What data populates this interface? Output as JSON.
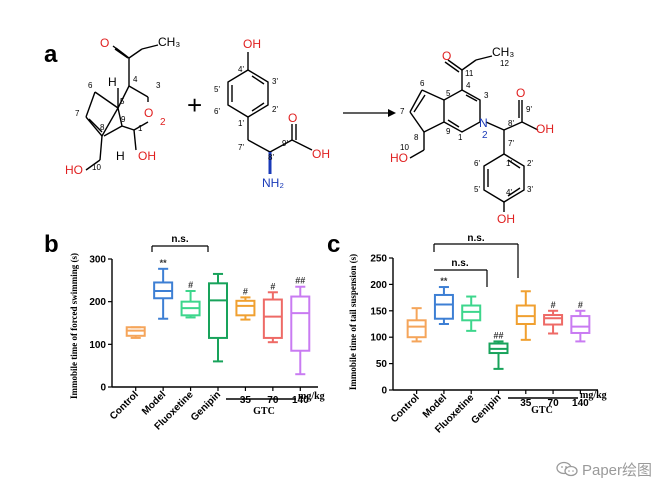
{
  "panel_a": {
    "label": "a",
    "plus": "+",
    "compound1": {
      "methyl": "CH₃",
      "atoms": {
        "O_ester": "O",
        "O_ring": "O",
        "ring_O_number": "2",
        "OH_10": "HO",
        "OH_1": "OH",
        "H5": "H",
        "H9": "H"
      },
      "numbers": {
        "n1": "1",
        "n3": "3",
        "n4": "4",
        "n5": "5",
        "n6": "6",
        "n7": "7",
        "n8": "8",
        "n9": "9",
        "n10": "10"
      }
    },
    "compound2": {
      "atoms": {
        "OH_top": "OH",
        "NH2": "NH₂",
        "O_acid": "O",
        "OH_acid": "OH"
      },
      "numbers": {
        "p4": "4'",
        "p3": "3'",
        "p5": "5'",
        "p6": "6'",
        "p1": "1'",
        "p2": "2'",
        "p7": "7'",
        "p8": "8'",
        "p9": "9'"
      }
    },
    "product": {
      "methyl": "CH₃",
      "atoms": {
        "O_ester": "O",
        "N": "N",
        "N_number": "2",
        "HO_10": "HO",
        "O_acid": "O",
        "OH_acid": "OH",
        "OH_bottom": "OH"
      },
      "numbers": {
        "n1": "1",
        "n3": "3",
        "n4": "4",
        "n5": "5",
        "n6": "6",
        "n7": "7",
        "n8": "8",
        "n9": "9",
        "n10": "10",
        "n11": "11",
        "n12": "12",
        "p8": "8'",
        "p9": "9'",
        "p7": "7'",
        "p1": "1'",
        "p2": "2'",
        "p3": "3'",
        "p4": "4'",
        "p5": "5'",
        "p6": "6'"
      }
    }
  },
  "chart_data": [
    {
      "type": "box",
      "panel_label": "b",
      "ylabel": "Immobile time of forced swimming (s)",
      "ylim": [
        0,
        300
      ],
      "yticks": [
        0,
        100,
        200,
        300
      ],
      "categories": [
        "Control",
        "Model",
        "Fluoxetine",
        "Genipin",
        "35",
        "70",
        "140"
      ],
      "group_label": "GTC",
      "unit_label": "mg/kg",
      "bracket_label": "n.s.",
      "colors": [
        "#F5A55A",
        "#3D7FD4",
        "#3DD68C",
        "#18A35B",
        "#F0A030",
        "#EE6A66",
        "#C97BF2"
      ],
      "boxes": [
        {
          "min": 115,
          "q1": 120,
          "median": 132,
          "q3": 140,
          "max": 140
        },
        {
          "min": 160,
          "q1": 208,
          "median": 225,
          "q3": 245,
          "max": 277
        },
        {
          "min": 163,
          "q1": 168,
          "median": 185,
          "q3": 200,
          "max": 225
        },
        {
          "min": 60,
          "q1": 115,
          "median": 203,
          "q3": 243,
          "max": 265
        },
        {
          "min": 158,
          "q1": 168,
          "median": 190,
          "q3": 202,
          "max": 210
        },
        {
          "min": 105,
          "q1": 115,
          "median": 165,
          "q3": 205,
          "max": 222
        },
        {
          "min": 30,
          "q1": 85,
          "median": 173,
          "q3": 212,
          "max": 235
        }
      ],
      "annotations": [
        "",
        "**",
        "#",
        "",
        "#",
        "#",
        "##"
      ]
    },
    {
      "type": "box",
      "panel_label": "c",
      "ylabel": "Immobile time of tail suspension (s)",
      "ylim": [
        0,
        250
      ],
      "yticks": [
        0,
        50,
        100,
        150,
        200,
        250
      ],
      "categories": [
        "Control",
        "Model",
        "Fluoxetine",
        "Genipin",
        "35",
        "70",
        "140"
      ],
      "group_label": "GTC",
      "unit_label": "mg/kg",
      "bracket_labels": [
        "n.s.",
        "n.s."
      ],
      "colors": [
        "#F5A55A",
        "#3D7FD4",
        "#3DD68C",
        "#18A35B",
        "#F0A030",
        "#EE6A66",
        "#C97BF2"
      ],
      "boxes": [
        {
          "min": 92,
          "q1": 100,
          "median": 120,
          "q3": 132,
          "max": 155
        },
        {
          "min": 125,
          "q1": 135,
          "median": 162,
          "q3": 180,
          "max": 195
        },
        {
          "min": 112,
          "q1": 132,
          "median": 148,
          "q3": 160,
          "max": 177
        },
        {
          "min": 40,
          "q1": 70,
          "median": 78,
          "q3": 88,
          "max": 92
        },
        {
          "min": 95,
          "q1": 125,
          "median": 140,
          "q3": 160,
          "max": 187
        },
        {
          "min": 107,
          "q1": 124,
          "median": 136,
          "q3": 142,
          "max": 150
        },
        {
          "min": 92,
          "q1": 108,
          "median": 120,
          "q3": 140,
          "max": 150
        }
      ],
      "annotations": [
        "",
        "**",
        "",
        "##",
        "",
        "#",
        "#"
      ]
    }
  ],
  "watermark": {
    "text": "Paper绘图",
    "icon": "wechat-icon"
  }
}
